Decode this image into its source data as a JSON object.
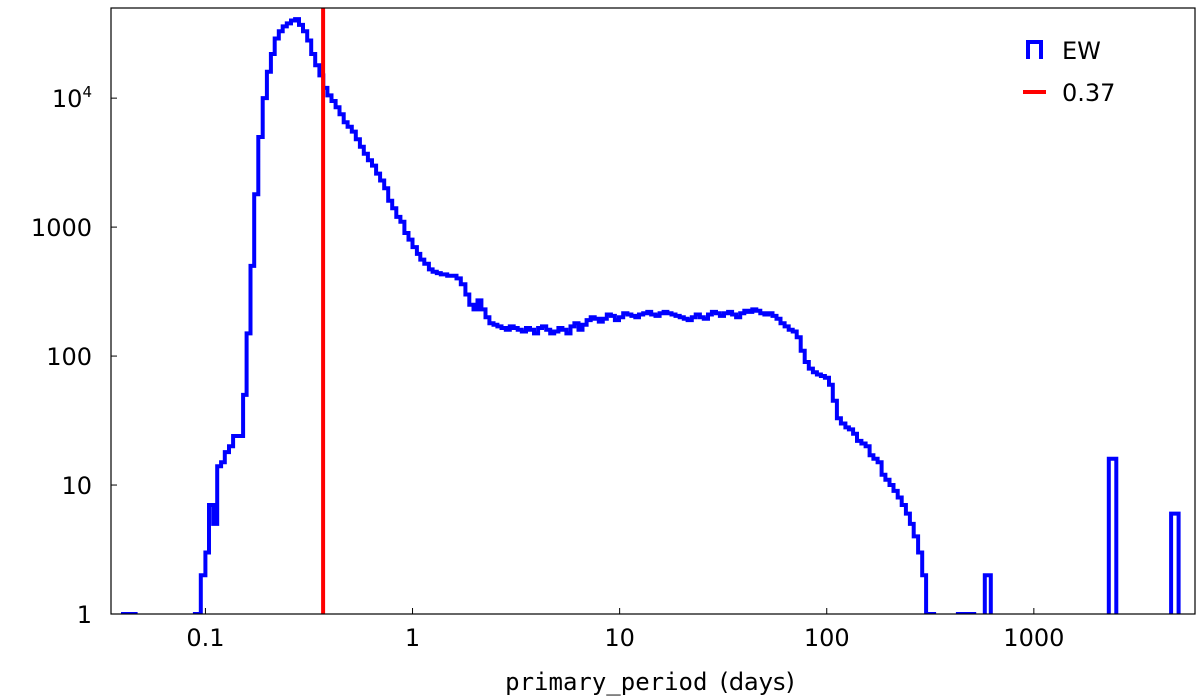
{
  "chart_data": {
    "type": "histogram",
    "xscale": "log",
    "yscale": "log",
    "xlim": [
      0.035,
      6000
    ],
    "ylim": [
      1,
      50000
    ],
    "xlabel_code": "primary_period",
    "xlabel_unit": "(days)",
    "xticks": [
      {
        "value": 0.1,
        "label": "0.1"
      },
      {
        "value": 1,
        "label": "1"
      },
      {
        "value": 10,
        "label": "10"
      },
      {
        "value": 100,
        "label": "100"
      },
      {
        "value": 1000,
        "label": "1000"
      }
    ],
    "yticks": [
      {
        "value": 1,
        "label": "1"
      },
      {
        "value": 10,
        "label": "10"
      },
      {
        "value": 100,
        "label": "100"
      },
      {
        "value": 1000,
        "label": "1000"
      },
      {
        "value": 10000,
        "label": "10",
        "sup": "4"
      }
    ],
    "series": [
      {
        "name": "EW",
        "color": "#0000ff",
        "style": "step",
        "bins": [
          [
            0.04,
            1
          ],
          [
            0.043,
            1
          ],
          [
            0.046,
            0
          ],
          [
            0.089,
            1
          ],
          [
            0.095,
            2
          ],
          [
            0.1,
            3
          ],
          [
            0.104,
            7
          ],
          [
            0.109,
            5
          ],
          [
            0.114,
            14
          ],
          [
            0.119,
            15
          ],
          [
            0.124,
            18
          ],
          [
            0.13,
            20
          ],
          [
            0.136,
            24
          ],
          [
            0.152,
            50
          ],
          [
            0.158,
            150
          ],
          [
            0.165,
            500
          ],
          [
            0.172,
            1800
          ],
          [
            0.18,
            5000
          ],
          [
            0.189,
            10000
          ],
          [
            0.198,
            16000
          ],
          [
            0.207,
            22000
          ],
          [
            0.216,
            29000
          ],
          [
            0.226,
            33000
          ],
          [
            0.236,
            36000
          ],
          [
            0.247,
            38000
          ],
          [
            0.259,
            40000
          ],
          [
            0.271,
            41000
          ],
          [
            0.283,
            37000
          ],
          [
            0.296,
            33000
          ],
          [
            0.31,
            28000
          ],
          [
            0.324,
            22000
          ],
          [
            0.339,
            18000
          ],
          [
            0.355,
            15000
          ],
          [
            0.371,
            12000
          ],
          [
            0.388,
            10500
          ],
          [
            0.406,
            9500
          ],
          [
            0.425,
            8500
          ],
          [
            0.444,
            7500
          ],
          [
            0.465,
            6500
          ],
          [
            0.486,
            6000
          ],
          [
            0.509,
            5500
          ],
          [
            0.532,
            4800
          ],
          [
            0.557,
            4200
          ],
          [
            0.582,
            3700
          ],
          [
            0.609,
            3300
          ],
          [
            0.637,
            3000
          ],
          [
            0.667,
            2600
          ],
          [
            0.697,
            2300
          ],
          [
            0.73,
            2000
          ],
          [
            0.763,
            1600
          ],
          [
            0.798,
            1400
          ],
          [
            0.835,
            1200
          ],
          [
            0.874,
            1100
          ],
          [
            0.914,
            900
          ],
          [
            0.956,
            800
          ],
          [
            1.0,
            700
          ],
          [
            1.05,
            620
          ],
          [
            1.09,
            560
          ],
          [
            1.14,
            520
          ],
          [
            1.2,
            470
          ],
          [
            1.25,
            450
          ],
          [
            1.31,
            440
          ],
          [
            1.37,
            430
          ],
          [
            1.47,
            420
          ],
          [
            1.63,
            400
          ],
          [
            1.71,
            360
          ],
          [
            1.8,
            300
          ],
          [
            1.88,
            250
          ],
          [
            1.97,
            230
          ],
          [
            2.06,
            270
          ],
          [
            2.15,
            230
          ],
          [
            2.25,
            200
          ],
          [
            2.35,
            180
          ],
          [
            2.46,
            175
          ],
          [
            2.57,
            170
          ],
          [
            2.69,
            165
          ],
          [
            2.82,
            160
          ],
          [
            2.95,
            170
          ],
          [
            3.08,
            165
          ],
          [
            3.22,
            160
          ],
          [
            3.37,
            155
          ],
          [
            3.53,
            165
          ],
          [
            3.69,
            160
          ],
          [
            3.86,
            150
          ],
          [
            4.04,
            165
          ],
          [
            4.22,
            170
          ],
          [
            4.42,
            160
          ],
          [
            4.62,
            150
          ],
          [
            4.83,
            155
          ],
          [
            5.06,
            165
          ],
          [
            5.29,
            160
          ],
          [
            5.53,
            150
          ],
          [
            5.79,
            170
          ],
          [
            6.05,
            180
          ],
          [
            6.33,
            160
          ],
          [
            6.62,
            175
          ],
          [
            6.93,
            190
          ],
          [
            7.25,
            200
          ],
          [
            7.58,
            195
          ],
          [
            7.93,
            185
          ],
          [
            8.29,
            195
          ],
          [
            8.67,
            210
          ],
          [
            9.07,
            205
          ],
          [
            9.49,
            190
          ],
          [
            9.93,
            200
          ],
          [
            10.4,
            215
          ],
          [
            10.9,
            210
          ],
          [
            11.4,
            205
          ],
          [
            11.9,
            200
          ],
          [
            12.4,
            210
          ],
          [
            13.0,
            215
          ],
          [
            13.6,
            220
          ],
          [
            14.2,
            210
          ],
          [
            14.9,
            205
          ],
          [
            15.6,
            215
          ],
          [
            16.3,
            220
          ],
          [
            17.0,
            215
          ],
          [
            17.8,
            210
          ],
          [
            18.6,
            205
          ],
          [
            19.5,
            200
          ],
          [
            20.4,
            195
          ],
          [
            21.3,
            190
          ],
          [
            22.3,
            200
          ],
          [
            23.3,
            210
          ],
          [
            24.4,
            200
          ],
          [
            25.5,
            195
          ],
          [
            26.7,
            210
          ],
          [
            27.9,
            220
          ],
          [
            29.2,
            215
          ],
          [
            30.5,
            205
          ],
          [
            31.9,
            215
          ],
          [
            33.4,
            220
          ],
          [
            34.9,
            210
          ],
          [
            36.5,
            200
          ],
          [
            38.2,
            215
          ],
          [
            40.0,
            225
          ],
          [
            41.8,
            220
          ],
          [
            43.7,
            230
          ],
          [
            45.7,
            225
          ],
          [
            47.8,
            215
          ],
          [
            50.0,
            210
          ],
          [
            52.3,
            215
          ],
          [
            54.7,
            205
          ],
          [
            57.2,
            195
          ],
          [
            59.8,
            180
          ],
          [
            62.6,
            170
          ],
          [
            65.5,
            160
          ],
          [
            68.5,
            155
          ],
          [
            71.6,
            140
          ],
          [
            74.9,
            110
          ],
          [
            78.3,
            90
          ],
          [
            81.9,
            80
          ],
          [
            85.7,
            75
          ],
          [
            89.6,
            72
          ],
          [
            93.7,
            70
          ],
          [
            98.0,
            68
          ],
          [
            102.5,
            60
          ],
          [
            107,
            45
          ],
          [
            112,
            33
          ],
          [
            117,
            30
          ],
          [
            123,
            28
          ],
          [
            128,
            27
          ],
          [
            134,
            25
          ],
          [
            140,
            22
          ],
          [
            147,
            21
          ],
          [
            154,
            20
          ],
          [
            161,
            17
          ],
          [
            168,
            16
          ],
          [
            176,
            15
          ],
          [
            184,
            12
          ],
          [
            192,
            11
          ],
          [
            201,
            10
          ],
          [
            210,
            9
          ],
          [
            220,
            8
          ],
          [
            230,
            7
          ],
          [
            241,
            6
          ],
          [
            252,
            5
          ],
          [
            263,
            4
          ],
          [
            276,
            3
          ],
          [
            289,
            2
          ],
          [
            302,
            1
          ],
          [
            316,
            1
          ],
          [
            330,
            0
          ],
          [
            430,
            1
          ],
          [
            470,
            1
          ],
          [
            515,
            0
          ],
          [
            580,
            2
          ],
          [
            620,
            0
          ],
          [
            2300,
            16
          ],
          [
            2500,
            0
          ],
          [
            4600,
            6
          ],
          [
            5000,
            0
          ]
        ]
      },
      {
        "name": "0.37",
        "color": "#ff0000",
        "style": "vline",
        "x": 0.37
      }
    ],
    "legend_position": "top-right",
    "grid": false
  }
}
